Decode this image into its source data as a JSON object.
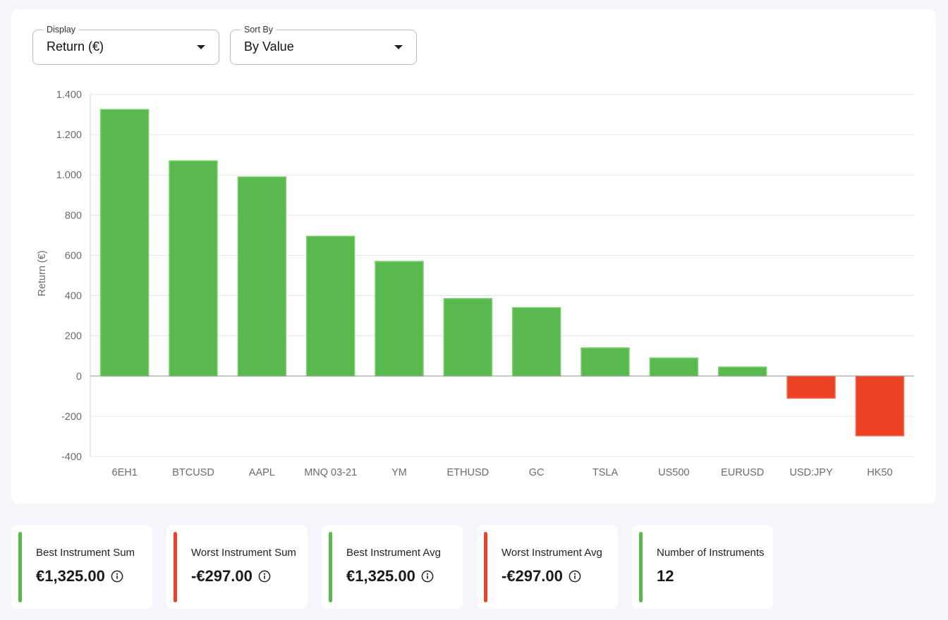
{
  "controls": {
    "display": {
      "legend": "Display",
      "value": "Return (€)"
    },
    "sort_by": {
      "legend": "Sort By",
      "value": "By Value"
    }
  },
  "colors": {
    "positive": "#5ab94e",
    "negative": "#ec4124",
    "grid": "#e6e6e6",
    "axis_text": "#6b6b6b"
  },
  "chart_data": {
    "type": "bar",
    "ylabel": "Return (€)",
    "ylim": [
      -400,
      1400
    ],
    "yticks": [
      1400,
      1200,
      1000,
      800,
      600,
      400,
      200,
      0,
      -200,
      -400
    ],
    "ytick_labels": [
      "1.400",
      "1.200",
      "1.000",
      "800",
      "600",
      "400",
      "200",
      "0",
      "-200",
      "-400"
    ],
    "grid": true,
    "categories": [
      "6EH1",
      "BTCUSD",
      "AAPL",
      "MNQ 03-21",
      "YM",
      "ETHUSD",
      "GC",
      "TSLA",
      "US500",
      "EURUSD",
      "USD:JPY",
      "HK50"
    ],
    "values": [
      1325,
      1070,
      990,
      695,
      570,
      385,
      340,
      140,
      90,
      45,
      -110,
      -297
    ]
  },
  "stats": [
    {
      "label": "Best Instrument Sum",
      "value": "€1,325.00",
      "info": true,
      "status": "positive"
    },
    {
      "label": "Worst Instrument Sum",
      "value": "-€297.00",
      "info": true,
      "status": "negative"
    },
    {
      "label": "Best Instrument Avg",
      "value": "€1,325.00",
      "info": true,
      "status": "positive"
    },
    {
      "label": "Worst Instrument Avg",
      "value": "-€297.00",
      "info": true,
      "status": "negative"
    },
    {
      "label": "Number of Instruments",
      "value": "12",
      "info": false,
      "status": "positive"
    }
  ]
}
